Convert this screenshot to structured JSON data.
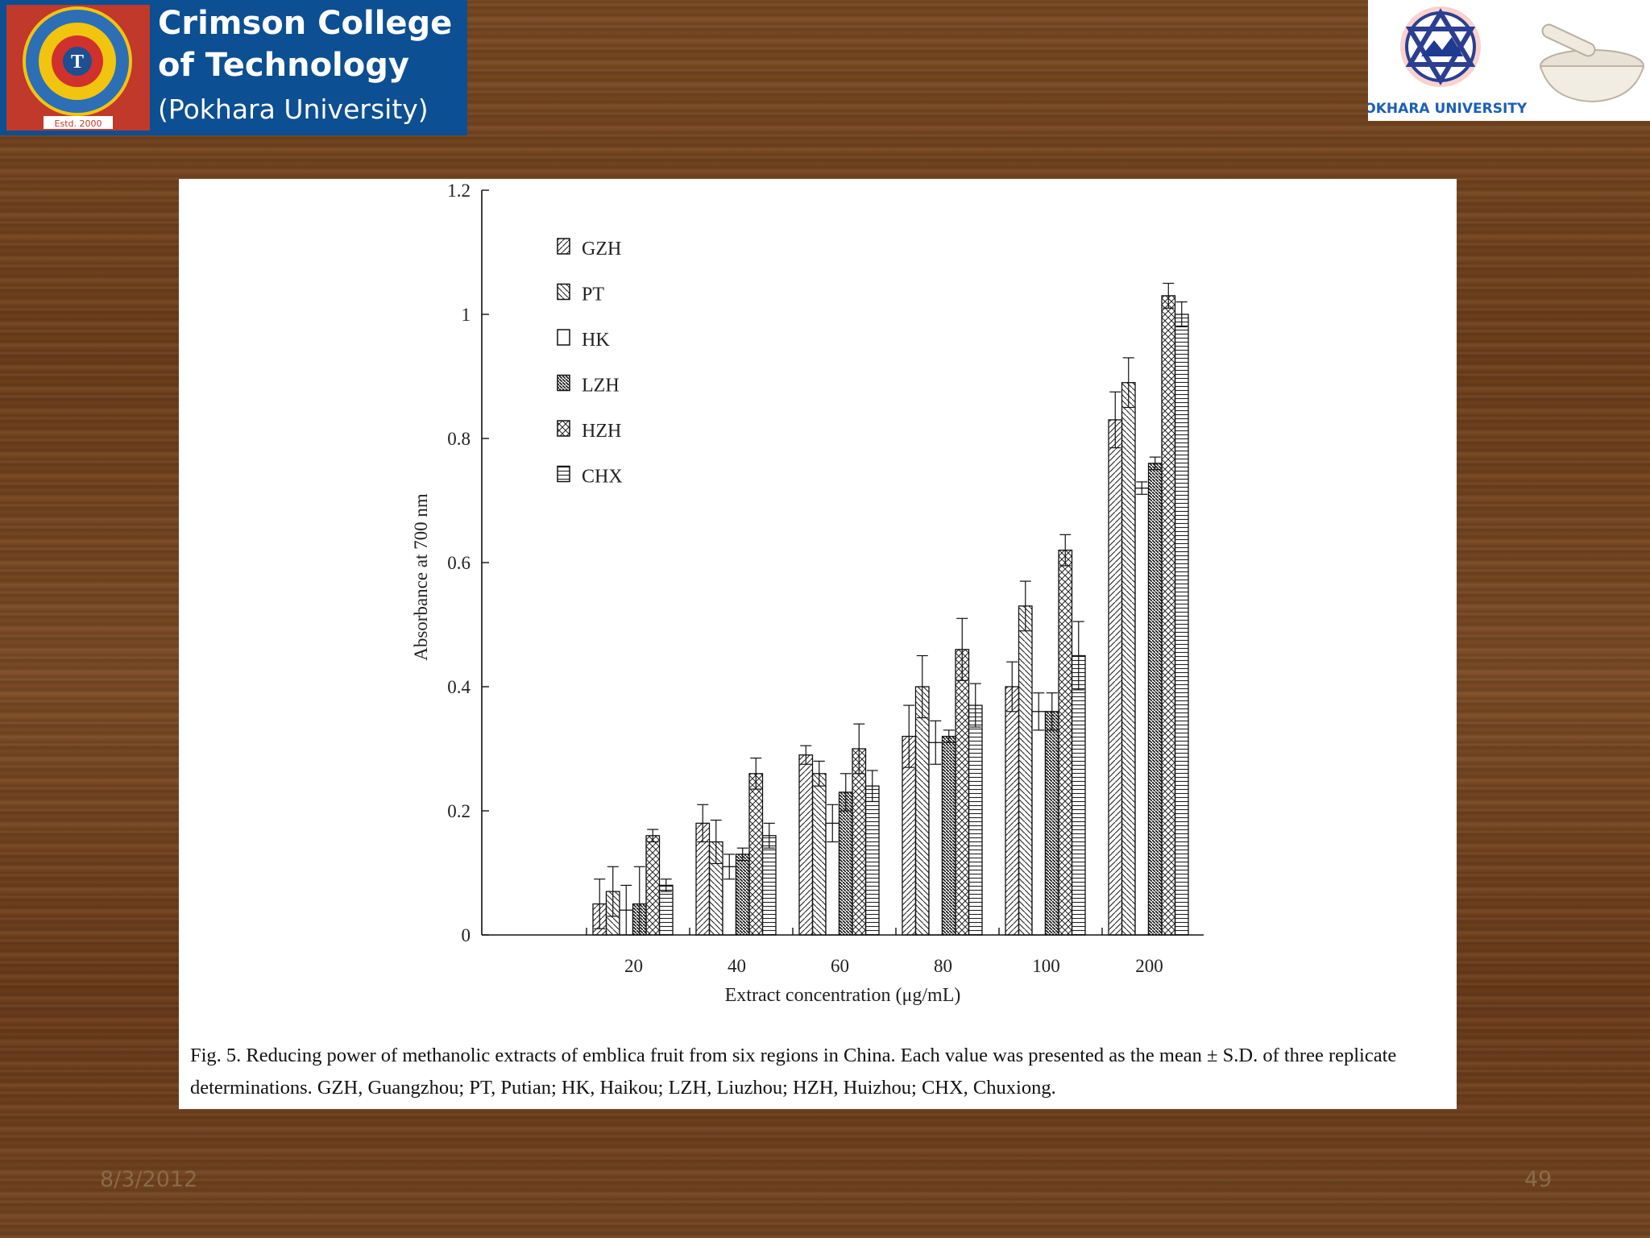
{
  "header": {
    "college_lines": [
      "Crimson College",
      "of Technology",
      "(Pokhara University)"
    ],
    "seal_text": "Estd. 2000",
    "partner_label": "POKHARA UNIVERSITY"
  },
  "chart_data": {
    "type": "bar",
    "categories": [
      "20",
      "40",
      "60",
      "80",
      "100",
      "200"
    ],
    "series": [
      {
        "name": "GZH",
        "values": [
          0.05,
          0.18,
          0.29,
          0.32,
          0.4,
          0.83
        ],
        "errors": [
          0.04,
          0.03,
          0.015,
          0.05,
          0.04,
          0.045
        ]
      },
      {
        "name": "PT",
        "values": [
          0.07,
          0.15,
          0.26,
          0.4,
          0.53,
          0.89
        ],
        "errors": [
          0.04,
          0.035,
          0.02,
          0.05,
          0.04,
          0.04
        ]
      },
      {
        "name": "HK",
        "values": [
          0.04,
          0.11,
          0.18,
          0.31,
          0.36,
          0.72
        ],
        "errors": [
          0.04,
          0.02,
          0.03,
          0.035,
          0.03,
          0.01
        ]
      },
      {
        "name": "LZH",
        "values": [
          0.05,
          0.13,
          0.23,
          0.32,
          0.36,
          0.76
        ],
        "errors": [
          0.06,
          0.01,
          0.03,
          0.01,
          0.03,
          0.01
        ]
      },
      {
        "name": "HZH",
        "values": [
          0.16,
          0.26,
          0.3,
          0.46,
          0.62,
          1.03
        ],
        "errors": [
          0.01,
          0.025,
          0.04,
          0.05,
          0.025,
          0.02
        ]
      },
      {
        "name": "CHX",
        "values": [
          0.08,
          0.16,
          0.24,
          0.37,
          0.45,
          1.0
        ],
        "errors": [
          0.01,
          0.02,
          0.025,
          0.035,
          0.055,
          0.02
        ]
      }
    ],
    "patterns": [
      "diag-fwd",
      "diag-back",
      "empty",
      "dense-back",
      "cross",
      "horizontal"
    ],
    "ylabel": "Absorbance at 700 nm",
    "xlabel": "Extract concentration (μg/mL)",
    "ylim": [
      0,
      1.2
    ],
    "yticks": [
      "0",
      "0.2",
      "0.4",
      "0.6",
      "0.8",
      "1",
      "1.2"
    ],
    "yticks_values": [
      0,
      0.2,
      0.4,
      0.6,
      0.8,
      1.0,
      1.2
    ],
    "legend_position": "top-left",
    "grid": false
  },
  "caption": "Fig. 5.  Reducing power of methanolic extracts of emblica fruit from six regions in China. Each value was presented as the mean ± S.D. of three replicate determinations. GZH, Guangzhou; PT, Putian; HK, Haikou; LZH, Liuzhou; HZH, Huizhou; CHX, Chuxiong.",
  "footer": {
    "date": "8/3/2012",
    "page": "49"
  }
}
